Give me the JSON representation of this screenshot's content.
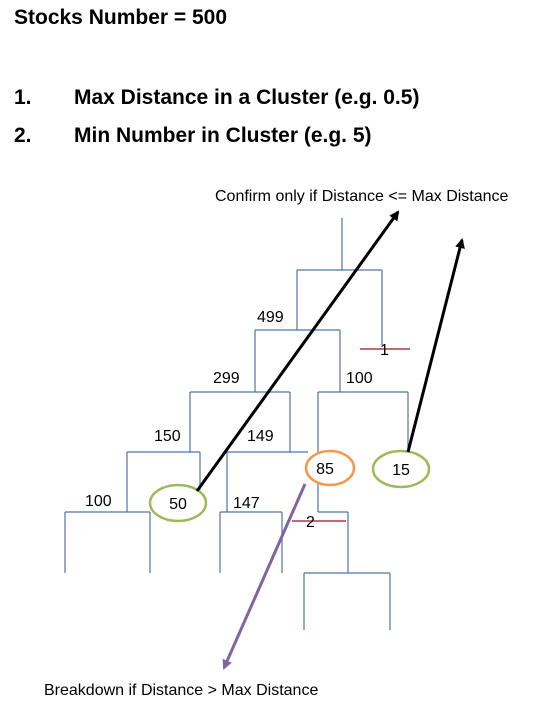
{
  "header": {
    "title": "Stocks Number = 500",
    "items": [
      {
        "number": "1.",
        "text": "Max Distance in a Cluster (e.g. 0.5)"
      },
      {
        "number": "2.",
        "text": "Min Number in Cluster (e.g. 5)"
      }
    ]
  },
  "diagram": {
    "annotation_top": "Confirm only if Distance <= Max Distance",
    "annotation_bottom": "Breakdown if Distance > Max Distance",
    "node_labels": {
      "n499": "499",
      "n1": "1",
      "n299": "299",
      "n100a": "100",
      "n150": "150",
      "n149": "149",
      "n100b": "100",
      "n147": "147",
      "n2": "2",
      "c50": "50",
      "c85": "85",
      "c15": "15"
    },
    "colors": {
      "tree": "#4f73a6",
      "green_circle": "#9bbb59",
      "orange_circle": "#f79646",
      "confirm_arrow": "#000000",
      "breakdown_arrow": "#8064a2",
      "cut_mark": "#b0364c"
    }
  }
}
